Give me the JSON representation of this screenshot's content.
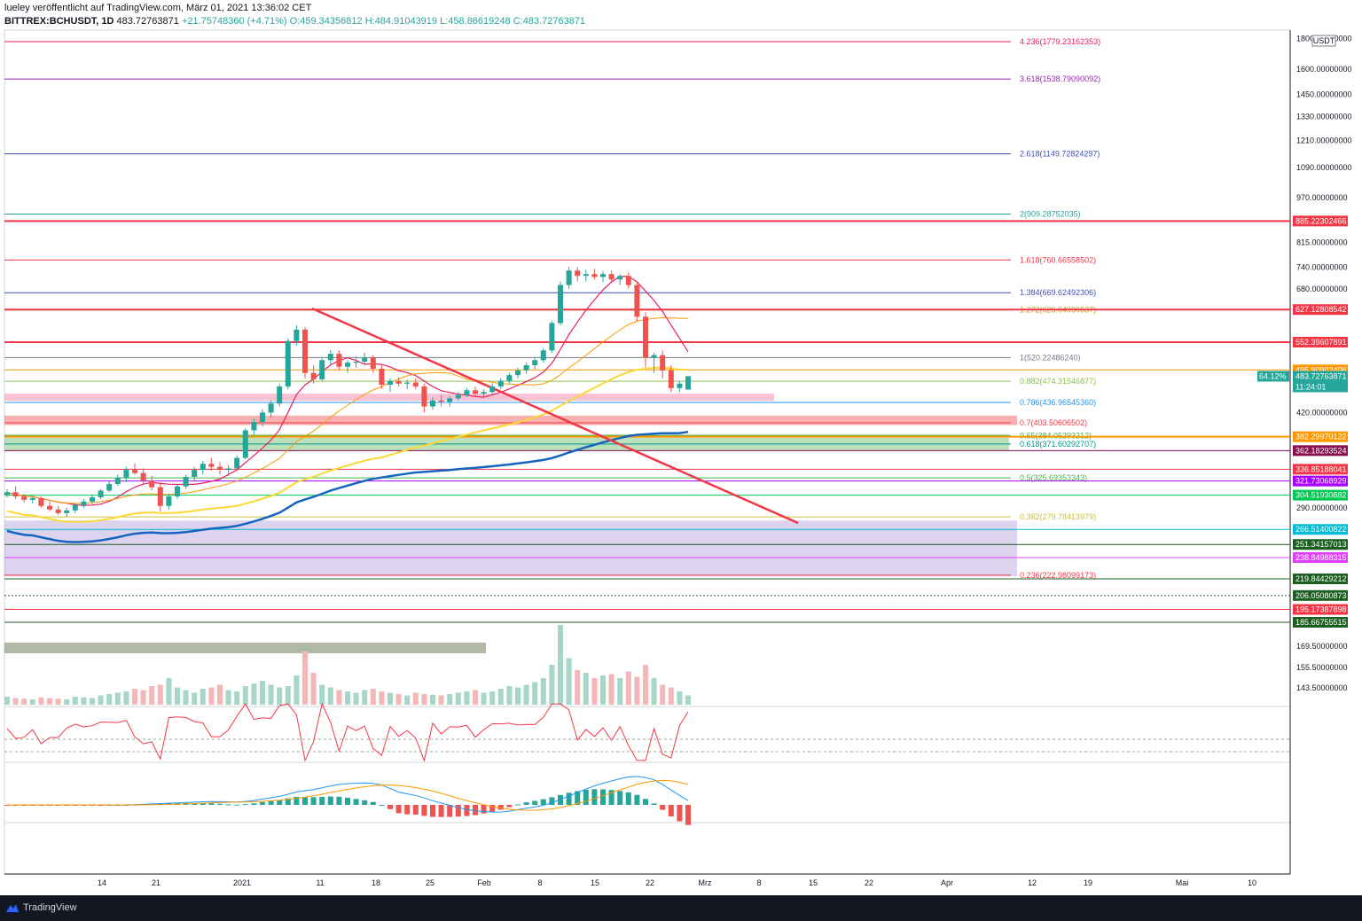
{
  "header": {
    "line1": "lueley veröffentlicht auf TradingView.com, März 01, 2021 13:36:02 CET",
    "symbol": "BITTREX:BCHUSDT, 1D",
    "last": "483.72763871",
    "change": "+21.75748360 (+4.71%)",
    "open": "O:459.34356812",
    "high": "H:484.91043919",
    "low": "L:458.86619248",
    "close": "C:483.72763871"
  },
  "currency": "USDT",
  "footer": {
    "brand": "TradingView"
  },
  "colors": {
    "up": "#26a69a",
    "down": "#ef5350",
    "fib_red": "#f23645",
    "fib_blue": "#2962ff",
    "accent_orange": "#ff9800"
  },
  "chart_data": {
    "type": "candlestick",
    "title": "",
    "price_scale_labels": [
      "1800.00000000",
      "1600.00000000",
      "1450.00000000",
      "1330.00000000",
      "1210.00000000",
      "1090.00000000",
      "970.00000000",
      "815.00000000",
      "740.00000000",
      "680.00000000",
      "420.00000000",
      "290.00000000",
      "169.50000000",
      "155.50000000",
      "143.50000000"
    ],
    "time_labels": [
      "14",
      "21",
      "2021",
      "11",
      "18",
      "25",
      "Feb",
      "8",
      "15",
      "22",
      "Mrz",
      "8",
      "15",
      "22",
      "Apr",
      "12",
      "19",
      "Mai",
      "10"
    ],
    "fib_levels": [
      {
        "text": "4.236(1779.23162353)",
        "color": "#e91e63"
      },
      {
        "text": "3.618(1538.79090092)",
        "color": "#9c27b0"
      },
      {
        "text": "2.618(1149.72824297)",
        "color": "#3f51b5"
      },
      {
        "text": "2(909.28752035)",
        "color": "#26a69a"
      },
      {
        "text": "1.618(760.66558502)",
        "color": "#f23645"
      },
      {
        "text": "1.384(669.62492306)",
        "color": "#3f51b5"
      },
      {
        "text": "1.272(626.04990537)",
        "color": "#c9a227"
      },
      {
        "text": "1(520.22486240)",
        "color": "#787b86"
      },
      {
        "text": "0.882(474.31546877)",
        "color": "#8bc34a"
      },
      {
        "text": "0.786(436.96545360)",
        "color": "#2196f3"
      },
      {
        "text": "0.7(403.50606502)",
        "color": "#f23645"
      },
      {
        "text": "0.65(384.05293212)",
        "color": "#4caf50"
      },
      {
        "text": "0.618(371.60292707)",
        "color": "#009688"
      },
      {
        "text": "0.5(325.69353343)",
        "color": "#4caf50"
      },
      {
        "text": "0.382(279.78413979)",
        "color": "#c9c23a"
      },
      {
        "text": "0.236(222.98099173)",
        "color": "#f23645"
      }
    ],
    "price_tags": [
      {
        "text": "885.22302466",
        "color": "#f23645"
      },
      {
        "text": "627.12808542",
        "color": "#f23645"
      },
      {
        "text": "552.39607891",
        "color": "#f23645"
      },
      {
        "text": "495.90902406",
        "color": "#ff9800"
      },
      {
        "text": "483.72763871",
        "color": "#26a69a"
      },
      {
        "text": "382.29970122",
        "color": "#ff9800"
      },
      {
        "text": "362.18293524",
        "color": "#880e4f"
      },
      {
        "text": "336.85188041",
        "color": "#f23645"
      },
      {
        "text": "321.73068929",
        "color": "#aa00ff"
      },
      {
        "text": "304.51930882",
        "color": "#00c853"
      },
      {
        "text": "266.51400822",
        "color": "#00bcd4"
      },
      {
        "text": "251.34157013",
        "color": "#1b5e20"
      },
      {
        "text": "238.84988315",
        "color": "#e040fb"
      },
      {
        "text": "219.84429212",
        "color": "#1b5e20"
      },
      {
        "text": "206.05080873",
        "color": "#1b5e20"
      },
      {
        "text": "195.17387898",
        "color": "#f23645"
      },
      {
        "text": "185.66755515",
        "color": "#1b5e20"
      }
    ],
    "current": {
      "percent": "64.12%",
      "countdown": "11:24:01"
    },
    "candles": [
      [
        305,
        312,
        302,
        308
      ],
      [
        308,
        315,
        300,
        303
      ],
      [
        303,
        306,
        296,
        299
      ],
      [
        299,
        304,
        295,
        301
      ],
      [
        301,
        303,
        290,
        292
      ],
      [
        292,
        297,
        286,
        288
      ],
      [
        288,
        292,
        282,
        284
      ],
      [
        284,
        290,
        280,
        287
      ],
      [
        287,
        295,
        284,
        293
      ],
      [
        293,
        300,
        290,
        297
      ],
      [
        297,
        305,
        294,
        302
      ],
      [
        302,
        312,
        300,
        310
      ],
      [
        310,
        322,
        308,
        318
      ],
      [
        318,
        330,
        316,
        326
      ],
      [
        326,
        340,
        320,
        336
      ],
      [
        336,
        345,
        330,
        332
      ],
      [
        332,
        338,
        318,
        322
      ],
      [
        322,
        328,
        310,
        314
      ],
      [
        314,
        320,
        286,
        292
      ],
      [
        292,
        306,
        288,
        303
      ],
      [
        303,
        318,
        300,
        315
      ],
      [
        315,
        330,
        312,
        327
      ],
      [
        327,
        340,
        322,
        336
      ],
      [
        336,
        348,
        330,
        344
      ],
      [
        344,
        352,
        335,
        340
      ],
      [
        340,
        346,
        330,
        336
      ],
      [
        336,
        342,
        328,
        338
      ],
      [
        338,
        355,
        335,
        352
      ],
      [
        352,
        395,
        350,
        392
      ],
      [
        392,
        410,
        385,
        405
      ],
      [
        405,
        425,
        398,
        420
      ],
      [
        420,
        440,
        412,
        435
      ],
      [
        435,
        470,
        430,
        465
      ],
      [
        465,
        560,
        460,
        555
      ],
      [
        555,
        590,
        545,
        580
      ],
      [
        580,
        585,
        480,
        490
      ],
      [
        490,
        505,
        470,
        478
      ],
      [
        478,
        520,
        475,
        515
      ],
      [
        515,
        535,
        505,
        528
      ],
      [
        528,
        535,
        495,
        502
      ],
      [
        502,
        515,
        490,
        510
      ],
      [
        510,
        522,
        500,
        512
      ],
      [
        512,
        530,
        505,
        520
      ],
      [
        520,
        525,
        490,
        498
      ],
      [
        498,
        505,
        460,
        468
      ],
      [
        468,
        480,
        455,
        475
      ],
      [
        475,
        482,
        465,
        470
      ],
      [
        470,
        478,
        460,
        472
      ],
      [
        472,
        480,
        460,
        465
      ],
      [
        465,
        470,
        420,
        430
      ],
      [
        430,
        445,
        425,
        440
      ],
      [
        440,
        450,
        430,
        438
      ],
      [
        438,
        448,
        430,
        444
      ],
      [
        444,
        455,
        440,
        450
      ],
      [
        450,
        462,
        446,
        458
      ],
      [
        458,
        465,
        448,
        452
      ],
      [
        452,
        460,
        445,
        455
      ],
      [
        455,
        470,
        450,
        465
      ],
      [
        465,
        480,
        460,
        475
      ],
      [
        475,
        490,
        470,
        486
      ],
      [
        486,
        500,
        480,
        495
      ],
      [
        495,
        510,
        488,
        505
      ],
      [
        505,
        520,
        498,
        515
      ],
      [
        515,
        540,
        510,
        535
      ],
      [
        535,
        600,
        530,
        595
      ],
      [
        595,
        700,
        590,
        690
      ],
      [
        690,
        740,
        680,
        730
      ],
      [
        730,
        740,
        700,
        715
      ],
      [
        715,
        732,
        700,
        720
      ],
      [
        720,
        735,
        705,
        712
      ],
      [
        712,
        728,
        698,
        720
      ],
      [
        720,
        730,
        695,
        705
      ],
      [
        705,
        720,
        690,
        715
      ],
      [
        715,
        725,
        680,
        690
      ],
      [
        690,
        700,
        600,
        610
      ],
      [
        610,
        620,
        500,
        520
      ],
      [
        520,
        530,
        490,
        525
      ],
      [
        525,
        535,
        480,
        495
      ],
      [
        495,
        505,
        455,
        462
      ],
      [
        462,
        475,
        455,
        470
      ],
      [
        459.34,
        484.91,
        458.87,
        483.73
      ]
    ],
    "volume": [
      12,
      10,
      9,
      8,
      11,
      10,
      9,
      8,
      12,
      11,
      10,
      14,
      16,
      18,
      20,
      24,
      22,
      28,
      30,
      40,
      26,
      22,
      18,
      24,
      26,
      30,
      22,
      20,
      28,
      32,
      36,
      30,
      26,
      28,
      44,
      80,
      48,
      30,
      26,
      22,
      20,
      18,
      22,
      24,
      20,
      18,
      16,
      14,
      18,
      16,
      15,
      14,
      16,
      18,
      20,
      22,
      18,
      20,
      24,
      28,
      26,
      30,
      34,
      40,
      60,
      120,
      70,
      52,
      48,
      40,
      44,
      46,
      40,
      50,
      42,
      60,
      40,
      30,
      26,
      20,
      14
    ]
  }
}
